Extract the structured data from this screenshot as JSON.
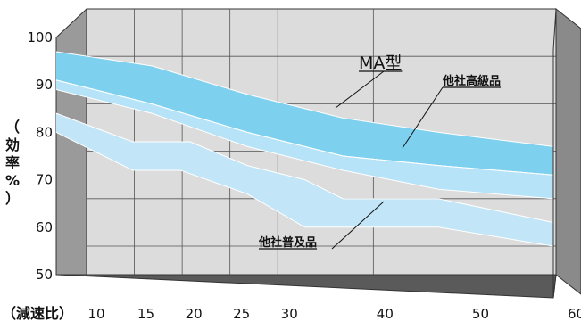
{
  "chart_data": {
    "type": "area",
    "title": "",
    "xlabel": "（減速比）",
    "ylabel_chars": [
      "（",
      "効",
      "率",
      "%",
      "）"
    ],
    "x": [
      10,
      15,
      20,
      25,
      30,
      40,
      50,
      60
    ],
    "xlim": [
      10,
      62
    ],
    "ylim": [
      50,
      100
    ],
    "yticks": [
      50,
      60,
      70,
      80,
      90,
      100
    ],
    "grid": true,
    "series": [
      {
        "name": "MA型",
        "color": "#7dd0ee",
        "upper": [
          [
            10,
            97
          ],
          [
            20,
            94
          ],
          [
            30,
            88
          ],
          [
            40,
            83
          ],
          [
            50,
            80
          ],
          [
            62,
            77
          ]
        ],
        "lower": [
          [
            10,
            91
          ],
          [
            20,
            86
          ],
          [
            30,
            80
          ],
          [
            40,
            75
          ],
          [
            50,
            73
          ],
          [
            62,
            71
          ]
        ]
      },
      {
        "name": "他社高級品",
        "color": "#b6e3f7",
        "upper": [
          [
            10,
            91
          ],
          [
            20,
            86
          ],
          [
            30,
            80
          ],
          [
            40,
            75
          ],
          [
            50,
            73
          ],
          [
            62,
            71
          ]
        ],
        "lower": [
          [
            10,
            89
          ],
          [
            20,
            84
          ],
          [
            30,
            77
          ],
          [
            40,
            72
          ],
          [
            50,
            68
          ],
          [
            62,
            66
          ]
        ]
      },
      {
        "name": "他社普及品",
        "color": "#c2e6f8",
        "upper": [
          [
            10,
            84
          ],
          [
            18,
            78
          ],
          [
            24,
            78
          ],
          [
            30,
            73
          ],
          [
            36,
            70
          ],
          [
            40,
            66
          ],
          [
            50,
            66
          ],
          [
            62,
            61
          ]
        ],
        "lower": [
          [
            10,
            80
          ],
          [
            18,
            72
          ],
          [
            23,
            72
          ],
          [
            30,
            67
          ],
          [
            36,
            60
          ],
          [
            40,
            60
          ],
          [
            50,
            60
          ],
          [
            62,
            56
          ]
        ]
      }
    ]
  }
}
